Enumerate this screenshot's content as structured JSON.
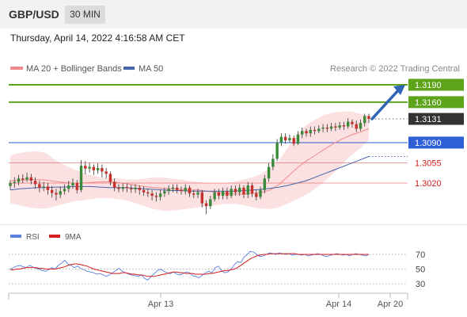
{
  "header": {
    "pair": "GBP/USD",
    "timeframe": "30 MIN"
  },
  "timestamp": "Thursday, April 14, 2022 4:16:58 AM CET",
  "colors": {
    "green": "#5da41a",
    "blue": "#2f5fd6",
    "red": "#e75b5b",
    "band": "#fbe1e1",
    "ma20": "#f08a8a",
    "ma50": "#4664a8",
    "candle_up": "#3a8a3a",
    "candle_down": "#c8302c",
    "current": "#333333",
    "arrow": "#2f65b4",
    "rsi": "#5b7fe0",
    "rsi_ma": "#d21e1e"
  },
  "legend": {
    "item1": "MA 20 + Bollinger Bands",
    "item2": "MA 50"
  },
  "copyright": "Research © 2022 Trading Central",
  "chart_data": {
    "type": "candlestick",
    "ylim": [
      1.2915,
      1.3225
    ],
    "x_ticks": [
      "Apr 13",
      "Apr 14",
      "Apr 20"
    ],
    "levels": [
      {
        "label": "1.3190",
        "value": 1.319,
        "style": "resistance"
      },
      {
        "label": "1.3160",
        "value": 1.316,
        "style": "resistance"
      },
      {
        "label": "1.3131",
        "value": 1.3131,
        "style": "current"
      },
      {
        "label": "1.3090",
        "value": 1.309,
        "style": "pivot"
      },
      {
        "label": "1.3055",
        "value": 1.3055,
        "style": "support"
      },
      {
        "label": "1.3020",
        "value": 1.302,
        "style": "support"
      }
    ],
    "candles": [
      [
        1.3015,
        1.302,
        1.3025,
        1.3008
      ],
      [
        1.302,
        1.3022,
        1.303,
        1.3012
      ],
      [
        1.3022,
        1.3028,
        1.3034,
        1.3016
      ],
      [
        1.3028,
        1.3026,
        1.3035,
        1.302
      ],
      [
        1.3026,
        1.303,
        1.3038,
        1.3022
      ],
      [
        1.303,
        1.3024,
        1.3036,
        1.3018
      ],
      [
        1.3024,
        1.3018,
        1.303,
        1.301
      ],
      [
        1.3018,
        1.3012,
        1.3024,
        1.3004
      ],
      [
        1.3012,
        1.3014,
        1.3022,
        1.3006
      ],
      [
        1.3014,
        1.3008,
        1.302,
        1.3
      ],
      [
        1.3008,
        1.3003,
        1.3015,
        1.2995
      ],
      [
        1.3003,
        1.3,
        1.301,
        1.299
      ],
      [
        1.3,
        1.3006,
        1.3014,
        1.2994
      ],
      [
        1.3006,
        1.301,
        1.3018,
        1.3
      ],
      [
        1.301,
        1.3016,
        1.3024,
        1.3004
      ],
      [
        1.3016,
        1.302,
        1.3028,
        1.301
      ],
      [
        1.302,
        1.3008,
        1.3025,
        1.3002
      ],
      [
        1.3008,
        1.305,
        1.306,
        1.3004
      ],
      [
        1.305,
        1.3045,
        1.3058,
        1.3035
      ],
      [
        1.3045,
        1.3048,
        1.3055,
        1.3038
      ],
      [
        1.3048,
        1.3042,
        1.3052,
        1.3034
      ],
      [
        1.3042,
        1.3046,
        1.3054,
        1.3036
      ],
      [
        1.3046,
        1.304,
        1.3052,
        1.303
      ],
      [
        1.304,
        1.3036,
        1.3046,
        1.3028
      ],
      [
        1.3036,
        1.3022,
        1.304,
        1.3016
      ],
      [
        1.3022,
        1.3012,
        1.3028,
        1.3006
      ],
      [
        1.3012,
        1.301,
        1.3018,
        1.3004
      ],
      [
        1.301,
        1.3013,
        1.302,
        1.3005
      ],
      [
        1.3013,
        1.3011,
        1.3019,
        1.3004
      ],
      [
        1.3011,
        1.3009,
        1.3017,
        1.3003
      ],
      [
        1.3009,
        1.3012,
        1.3018,
        1.3003
      ],
      [
        1.3012,
        1.3008,
        1.3016,
        1.3
      ],
      [
        1.3008,
        1.3004,
        1.3014,
        1.2998
      ],
      [
        1.3004,
        1.3002,
        1.301,
        1.2996
      ],
      [
        1.3002,
        1.2998,
        1.3008,
        1.299
      ],
      [
        1.2998,
        1.2996,
        1.3004,
        1.2988
      ],
      [
        1.2996,
        1.3002,
        1.3008,
        1.299
      ],
      [
        1.3002,
        1.3006,
        1.3012,
        1.2996
      ],
      [
        1.3006,
        1.301,
        1.3016,
        1.3
      ],
      [
        1.301,
        1.3012,
        1.3018,
        1.3004
      ],
      [
        1.3012,
        1.3008,
        1.3018,
        1.3002
      ],
      [
        1.3008,
        1.3006,
        1.3014,
        1.3
      ],
      [
        1.3006,
        1.3012,
        1.3018,
        1.3
      ],
      [
        1.3012,
        1.3002,
        1.3016,
        1.2996
      ],
      [
        1.3002,
        1.3,
        1.3008,
        1.2994
      ],
      [
        1.3,
        1.3004,
        1.301,
        1.2994
      ],
      [
        1.3004,
        1.2985,
        1.3008,
        1.2978
      ],
      [
        1.2985,
        1.298,
        1.299,
        1.2966
      ],
      [
        1.298,
        1.2992,
        1.2998,
        1.2975
      ],
      [
        1.2992,
        1.3004,
        1.301,
        1.2988
      ],
      [
        1.3004,
        1.2998,
        1.301,
        1.2992
      ],
      [
        1.2998,
        1.3006,
        1.3012,
        1.2992
      ],
      [
        1.3006,
        1.2998,
        1.3012,
        1.2992
      ],
      [
        1.2998,
        1.301,
        1.3016,
        1.2994
      ],
      [
        1.301,
        1.3004,
        1.3016,
        1.2998
      ],
      [
        1.3004,
        1.3012,
        1.3018,
        1.2998
      ],
      [
        1.3012,
        1.3,
        1.3016,
        1.2994
      ],
      [
        1.3,
        1.3016,
        1.3022,
        1.2994
      ],
      [
        1.3016,
        1.3002,
        1.302,
        1.2996
      ],
      [
        1.3002,
        1.2996,
        1.3008,
        1.299
      ],
      [
        1.2996,
        1.3008,
        1.3014,
        1.2992
      ],
      [
        1.3008,
        1.3028,
        1.3034,
        1.3002
      ],
      [
        1.3028,
        1.3048,
        1.3055,
        1.3022
      ],
      [
        1.3048,
        1.3062,
        1.307,
        1.3042
      ],
      [
        1.3062,
        1.309,
        1.3096,
        1.3058
      ],
      [
        1.309,
        1.31,
        1.3106,
        1.3084
      ],
      [
        1.31,
        1.3094,
        1.3106,
        1.3088
      ],
      [
        1.3094,
        1.3098,
        1.3104,
        1.309
      ],
      [
        1.3098,
        1.3088,
        1.3102,
        1.3084
      ],
      [
        1.3088,
        1.3104,
        1.311,
        1.3086
      ],
      [
        1.3104,
        1.311,
        1.3116,
        1.3098
      ],
      [
        1.311,
        1.3106,
        1.3114,
        1.31
      ],
      [
        1.3106,
        1.3112,
        1.3118,
        1.31
      ],
      [
        1.3112,
        1.311,
        1.3118,
        1.3104
      ],
      [
        1.311,
        1.3114,
        1.312,
        1.3106
      ],
      [
        1.3114,
        1.3116,
        1.3122,
        1.3108
      ],
      [
        1.3116,
        1.3114,
        1.3122,
        1.3108
      ],
      [
        1.3114,
        1.3118,
        1.3124,
        1.311
      ],
      [
        1.3118,
        1.3116,
        1.3124,
        1.311
      ],
      [
        1.3116,
        1.312,
        1.3126,
        1.3112
      ],
      [
        1.312,
        1.3118,
        1.3126,
        1.3112
      ],
      [
        1.3118,
        1.3126,
        1.3132,
        1.3114
      ],
      [
        1.3126,
        1.3122,
        1.313,
        1.3116
      ],
      [
        1.3122,
        1.3114,
        1.3128,
        1.3108
      ],
      [
        1.3114,
        1.3124,
        1.313,
        1.311
      ],
      [
        1.3124,
        1.3136,
        1.314,
        1.3118
      ],
      [
        1.3136,
        1.3131,
        1.314,
        1.3124
      ]
    ],
    "ma20": [
      1.3024,
      1.3025,
      1.3026,
      1.3026,
      1.3025,
      1.3023,
      1.3021,
      1.302,
      1.302,
      1.3021,
      1.3022,
      1.3022,
      1.3021,
      1.3019,
      1.3016,
      1.3014,
      1.3012,
      1.3011,
      1.301,
      1.3009,
      1.3008,
      1.3008,
      1.3006,
      1.3004,
      1.3002,
      1.3001,
      1.3001,
      1.3002,
      1.3004,
      1.3008,
      1.3018,
      1.3032,
      1.3046,
      1.3058,
      1.3068,
      1.3078,
      1.3088,
      1.3096,
      1.3103,
      1.3108,
      1.3114
    ],
    "band_upper": [
      1.3068,
      1.3072,
      1.3074,
      1.3075,
      1.3072,
      1.306,
      1.3052,
      1.3044,
      1.3038,
      1.3034,
      1.303,
      1.3028,
      1.3028,
      1.3026,
      1.3026,
      1.3028,
      1.303,
      1.303,
      1.3028,
      1.3026,
      1.3024,
      1.3022,
      1.302,
      1.302,
      1.302,
      1.3022,
      1.3026,
      1.303,
      1.3036,
      1.3045,
      1.306,
      1.3082,
      1.3104,
      1.312,
      1.313,
      1.3138,
      1.3142,
      1.3144,
      1.3144,
      1.314,
      1.3136
    ],
    "band_lower": [
      1.2985,
      1.2982,
      1.2978,
      1.2976,
      1.2976,
      1.298,
      1.2984,
      1.2988,
      1.299,
      1.2992,
      1.2994,
      1.2994,
      1.2992,
      1.299,
      1.2985,
      1.298,
      1.2975,
      1.2972,
      1.2972,
      1.2974,
      1.2976,
      1.2978,
      1.298,
      1.2982,
      1.2984,
      1.2984,
      1.2982,
      1.2978,
      1.2976,
      1.2975,
      1.2978,
      1.2985,
      1.2992,
      1.3,
      1.301,
      1.3022,
      1.3036,
      1.3052,
      1.3068,
      1.308,
      1.3094
    ],
    "ma50": [
      1.3008,
      1.301,
      1.3011,
      1.3012,
      1.3012,
      1.3013,
      1.3013,
      1.3014,
      1.3014,
      1.3014,
      1.3013,
      1.3012,
      1.3012,
      1.3012,
      1.3011,
      1.301,
      1.3009,
      1.3008,
      1.3007,
      1.3007,
      1.3006,
      1.3006,
      1.3006,
      1.3006,
      1.3006,
      1.3006,
      1.3007,
      1.3008,
      1.3009,
      1.3011,
      1.3013,
      1.3016,
      1.302,
      1.3024,
      1.303,
      1.3036,
      1.3042,
      1.3048,
      1.3054,
      1.306,
      1.3066
    ],
    "rsi_panel": {
      "legend": {
        "rsi": "RSI",
        "ma": "9MA"
      },
      "ylim": [
        22,
        80
      ],
      "ticks": [
        "70",
        "50",
        "30"
      ],
      "rsi": [
        50,
        52,
        54,
        55,
        53,
        52,
        55,
        53,
        51,
        50,
        48,
        47,
        49,
        52,
        50,
        55,
        58,
        62,
        57,
        55,
        52,
        54,
        51,
        49,
        47,
        46,
        45,
        43,
        44,
        42,
        40,
        42,
        45,
        48,
        51,
        47,
        45,
        43,
        42,
        41,
        40,
        42,
        37,
        35,
        40,
        44,
        48,
        50,
        47,
        45,
        44,
        46,
        43,
        42,
        44,
        46,
        45,
        41,
        40,
        38,
        42,
        45,
        47,
        45,
        52,
        54,
        48,
        45,
        46,
        50,
        56,
        60,
        59,
        66,
        70,
        74,
        73,
        70,
        67,
        68,
        70,
        72,
        71,
        70,
        72,
        71,
        70,
        71,
        69,
        70,
        70,
        69,
        70,
        68,
        69,
        70,
        71,
        70,
        68,
        67,
        69,
        70,
        71,
        70,
        69,
        70,
        68,
        70,
        71,
        70,
        69,
        68,
        70
      ],
      "ma": [
        49,
        49,
        50,
        50,
        51,
        52,
        52,
        52,
        52,
        51,
        51,
        50,
        50,
        50,
        50,
        51,
        52,
        53,
        55,
        56,
        57,
        57,
        56,
        55,
        54,
        52,
        50,
        49,
        48,
        47,
        46,
        45,
        44,
        44,
        44,
        45,
        45,
        44,
        43,
        43,
        42,
        42,
        41,
        40,
        40,
        40,
        41,
        42,
        43,
        44,
        45,
        46,
        46,
        45,
        45,
        44,
        44,
        44,
        43,
        43,
        43,
        43,
        44,
        44,
        45,
        46,
        47,
        48,
        48,
        49,
        50,
        52,
        55,
        58,
        61,
        64,
        66,
        68,
        69,
        70,
        70,
        71,
        71,
        71,
        71,
        71,
        71,
        71,
        71,
        71,
        70,
        70,
        70,
        70,
        70,
        70,
        70,
        70,
        70,
        70,
        70,
        70,
        70,
        70,
        70,
        70,
        70,
        70,
        70,
        70,
        70,
        70,
        70
      ]
    }
  }
}
